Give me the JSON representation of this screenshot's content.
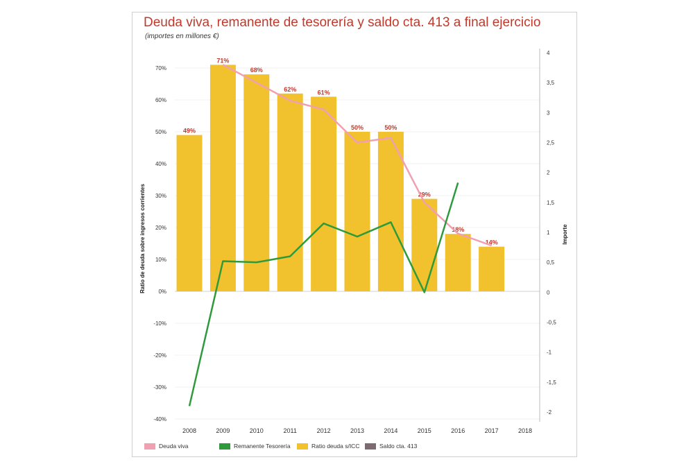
{
  "chart_data": {
    "type": "bar",
    "title": "Deuda viva, remanente de tesorería y saldo cta. 413  a final ejercicio",
    "subtitle": "(importes en millones €)",
    "ylabel_left": "Ratio de deuda sobre ingresos corrientes",
    "ylabel_right": "Importe",
    "categories": [
      "2008",
      "2009",
      "2010",
      "2011",
      "2012",
      "2013",
      "2014",
      "2015",
      "2016",
      "2017",
      "2018"
    ],
    "left_axis": {
      "ylim": [
        -40,
        70
      ],
      "ticks": [
        70,
        60,
        50,
        40,
        30,
        20,
        10,
        0,
        -10,
        -20,
        -30,
        -40
      ],
      "tick_labels": [
        "70%",
        "60%",
        "50%",
        "40%",
        "30%",
        "20%",
        "10%",
        "0%",
        "-10%",
        "-20%",
        "-30%",
        "-40%"
      ]
    },
    "right_axis": {
      "ylim": [
        -2,
        4
      ],
      "ticks": [
        4,
        3.5,
        3,
        2.5,
        2,
        1.5,
        1,
        0.5,
        0,
        -0.5,
        -1,
        -1.5,
        -2
      ],
      "tick_labels": [
        "4",
        "3,5",
        "3",
        "2,5",
        "2",
        "1,5",
        "1",
        "0,5",
        "0",
        "-0,5",
        "-1",
        "-1,5",
        "-2"
      ]
    },
    "series": [
      {
        "name": "Ratio deuda s/ICC",
        "kind": "bar",
        "axis": "left",
        "color": "#f2c12e",
        "values": [
          49,
          71,
          68,
          62,
          61,
          50,
          50,
          29,
          18,
          14,
          null
        ],
        "labels": [
          "49%",
          "71%",
          "68%",
          "62%",
          "61%",
          "50%",
          "50%",
          "29%",
          "18%",
          "14%",
          ""
        ]
      },
      {
        "name": "Deuda viva",
        "kind": "line",
        "axis": "right",
        "color": "#f0a0b0",
        "values": [
          null,
          3.8,
          3.5,
          3.2,
          3.05,
          2.5,
          2.58,
          1.5,
          0.98,
          0.78,
          null
        ]
      },
      {
        "name": "Remanente Tesorería",
        "kind": "line",
        "axis": "right",
        "color": "#2e9a3c",
        "values": [
          -1.9,
          0.52,
          0.5,
          0.6,
          1.15,
          0.93,
          1.17,
          0.0,
          1.83,
          null,
          null
        ]
      },
      {
        "name": "Saldo cta. 413",
        "kind": "line",
        "axis": "right",
        "color": "#7b6b70",
        "values": [
          null,
          null,
          null,
          null,
          null,
          null,
          null,
          null,
          null,
          null,
          null
        ]
      }
    ],
    "legend": [
      "Deuda viva",
      "Remanente Tesorería",
      "Ratio deuda s/ICC",
      "Saldo cta. 413"
    ],
    "legend_position": "bottom"
  }
}
